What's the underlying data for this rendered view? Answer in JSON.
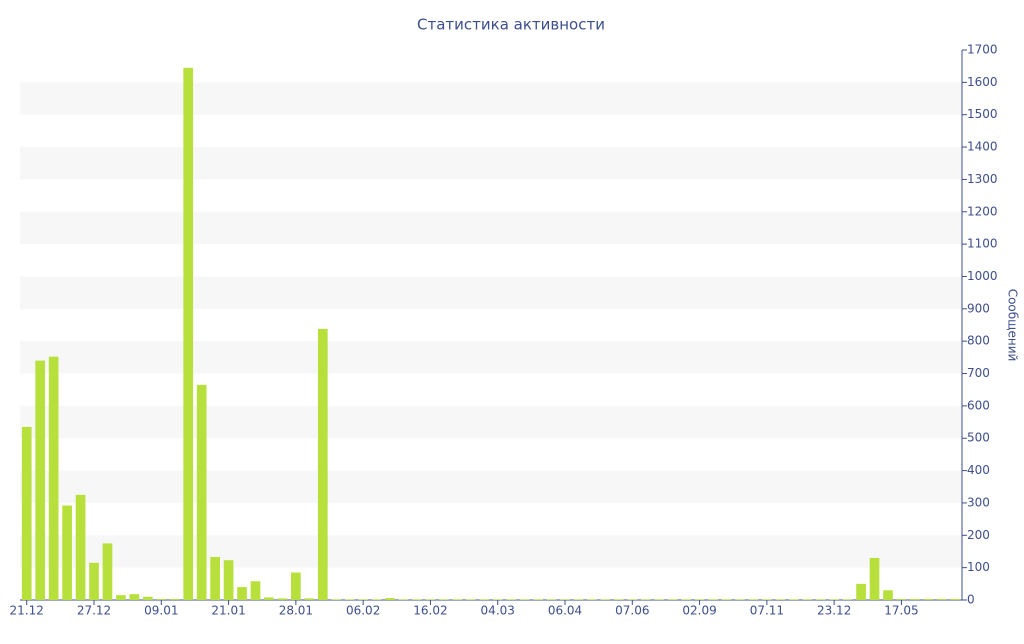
{
  "chart_data": {
    "type": "bar",
    "title": "Статистика активности",
    "y_label": "Сообщений",
    "categories": [
      "21.12",
      null,
      null,
      null,
      null,
      "27.12",
      null,
      null,
      null,
      null,
      "09.01",
      null,
      null,
      null,
      null,
      "21.01",
      null,
      null,
      null,
      null,
      "28.01",
      null,
      null,
      null,
      null,
      "06.02",
      null,
      null,
      null,
      null,
      "16.02",
      null,
      null,
      null,
      null,
      "04.03",
      null,
      null,
      null,
      null,
      "06.04",
      null,
      null,
      null,
      null,
      "07.06",
      null,
      null,
      null,
      null,
      "02.09",
      null,
      null,
      null,
      null,
      "07.11",
      null,
      null,
      null,
      null,
      "23.12",
      null,
      null,
      null,
      null,
      "17.05",
      null,
      null,
      null,
      null
    ],
    "values": [
      535,
      740,
      752,
      292,
      325,
      115,
      175,
      15,
      18,
      10,
      3,
      3,
      1645,
      665,
      133,
      123,
      40,
      58,
      8,
      5,
      85,
      5,
      838,
      2,
      2,
      2,
      2,
      6,
      2,
      2,
      2,
      2,
      2,
      2,
      2,
      2,
      2,
      2,
      2,
      2,
      2,
      2,
      2,
      2,
      2,
      2,
      2,
      2,
      2,
      2,
      2,
      2,
      2,
      2,
      2,
      2,
      2,
      2,
      2,
      2,
      2,
      2,
      50,
      130,
      30,
      3,
      3,
      3,
      3,
      3
    ],
    "color": "#b7e03c",
    "ylim": [
      0,
      1700
    ],
    "yticks": [
      0,
      100,
      200,
      300,
      400,
      500,
      600,
      700,
      800,
      900,
      1000,
      1100,
      1200,
      1300,
      1400,
      1500,
      1600,
      1700
    ],
    "grid": "bands",
    "y_axis_side": "right"
  }
}
